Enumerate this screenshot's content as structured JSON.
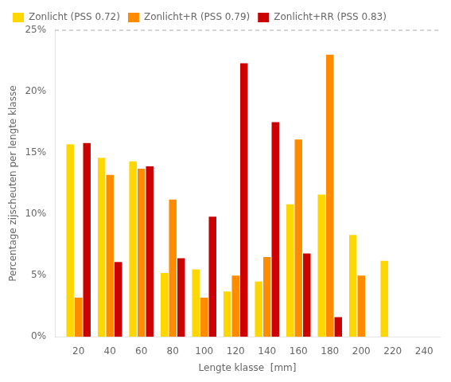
{
  "chart_data": {
    "type": "bar",
    "x": [
      20,
      40,
      60,
      80,
      100,
      120,
      140,
      160,
      180,
      200,
      220
    ],
    "series": [
      {
        "name": "Zonlicht (PSS 0.72)",
        "color": "#FFD700",
        "values": [
          15.7,
          14.6,
          14.3,
          5.2,
          5.5,
          3.7,
          4.5,
          10.8,
          11.6,
          8.3,
          6.2
        ]
      },
      {
        "name": "Zonlicht+R (PSS 0.79)",
        "color": "#FF8C00",
        "values": [
          3.2,
          13.2,
          13.7,
          11.2,
          3.2,
          5.0,
          6.5,
          16.1,
          23.0,
          5.0,
          0.0
        ]
      },
      {
        "name": "Zonlicht+RR (PSS 0.83)",
        "color": "#CC0000",
        "values": [
          15.8,
          6.1,
          13.9,
          6.4,
          9.8,
          22.3,
          17.5,
          6.8,
          1.6,
          0.0,
          0.0
        ]
      }
    ],
    "xlabel": "Lengte klasse  [mm]",
    "ylabel": "Percentage zijscheuten per lengte klasse",
    "xlim": [
      5,
      250
    ],
    "xticks": [
      20,
      40,
      60,
      80,
      100,
      120,
      140,
      160,
      180,
      200,
      220,
      240
    ],
    "ylim": [
      0,
      25
    ],
    "yticks": [
      {
        "value": 0,
        "label": "0%"
      },
      {
        "value": 5,
        "label": "5%"
      },
      {
        "value": 10,
        "label": "10%"
      },
      {
        "value": 15,
        "label": "15%"
      },
      {
        "value": 20,
        "label": "20%"
      },
      {
        "value": 25,
        "label": "25%"
      }
    ],
    "grid": false,
    "legend": "upper left"
  }
}
